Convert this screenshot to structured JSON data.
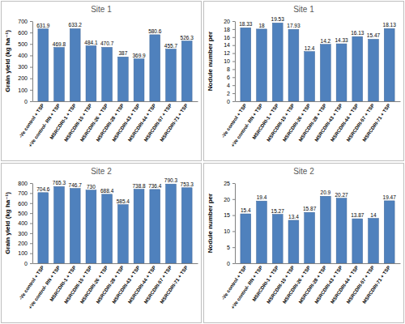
{
  "chart_data": [
    {
      "type": "bar",
      "title": "Site 1",
      "y_label": "Grain yield (kg ha⁻¹)",
      "categories": [
        "-Ve control + TSP",
        "+Ve control- RN + TSP",
        "MSRCDRI-1 + TSP",
        "MSRCDRI-15 + TSP",
        "MSRCDRI-26 + TSP",
        "MSRCDRI-28 + TSP",
        "MSRCDRI-43 + TSP",
        "MSRCDRI-44 + TSP",
        "MSRCDRI-57 + TSP",
        "MSRCDRI-71 + TSP"
      ],
      "values": [
        631.9,
        469.8,
        633.2,
        484.1,
        470.7,
        387,
        369.9,
        580.6,
        455.7,
        526.3
      ],
      "color": "#4f81bd",
      "ylim": [
        0,
        700
      ],
      "yticks": [
        0,
        100,
        200,
        300,
        400,
        500,
        600,
        700
      ],
      "data_labels": true,
      "grid": false
    },
    {
      "type": "bar",
      "title": "Site 1",
      "y_label": "Nodule number per",
      "categories": [
        "-Ve control + TSP",
        "+Ve control- RN + TSP",
        "MSRCDRI-1 + TSP",
        "MSRCDRI-15 + TSP",
        "MSRCDRI-26 + TSP",
        "MSRCDRI-28 + TSP",
        "MSRCDRI-43 + TSP",
        "MSRCDRI-44 + TSP",
        "MSRCDRI-57 + TSP",
        "MSRCDRI-71 + TSP"
      ],
      "values": [
        18.33,
        18,
        19.53,
        17.93,
        12.4,
        14.2,
        14.33,
        16.13,
        15.47,
        18.13
      ],
      "color": "#4f81bd",
      "ylim": [
        0,
        20
      ],
      "yticks": [
        0,
        2,
        4,
        6,
        8,
        10,
        12,
        14,
        16,
        18,
        20
      ],
      "data_labels": true,
      "grid": false
    },
    {
      "type": "bar",
      "title": "Site 2",
      "y_label": "Grain yield (kg ha⁻¹)",
      "categories": [
        "-Ve control + TSP",
        "+Ve control- RN + TSP",
        "MSRCDRI-1 + TSP",
        "MSRCDRI-15 + TSP",
        "MSRCDRI-26 + TSP",
        "MSRCDRI-28 + TSP",
        "MSRCDRI-43 + TSP",
        "MSRCDRI-44 + TSP",
        "MSRCDRI-57 + TSP",
        "MSRCDRI-71 + TSP"
      ],
      "values": [
        704.6,
        765.3,
        746.7,
        730,
        688.4,
        585.4,
        738.8,
        736.4,
        790.3,
        753.3
      ],
      "color": "#4f81bd",
      "ylim": [
        0,
        800
      ],
      "yticks": [
        0,
        100,
        200,
        300,
        400,
        500,
        600,
        700,
        800
      ],
      "data_labels": true,
      "grid": false
    },
    {
      "type": "bar",
      "title": "Site 2",
      "y_label": "Nodule number per",
      "categories": [
        "-Ve control + TSP",
        "+Ve control- RN + TSP",
        "MSRCDRI-1 + TSP",
        "MSRCDRI-15 + TSP",
        "MSRCDRI-26 + TSP",
        "MSRCDRI-28 + TSP",
        "MSRCDRI-43 + TSP",
        "MSRCDRI-44 + TSP",
        "MSRCDRI-57 + TSP",
        "MSRCDRI-71 + TSP"
      ],
      "values": [
        15.4,
        19.4,
        15.27,
        13.4,
        15.87,
        20.9,
        20.27,
        13.87,
        14,
        19.47
      ],
      "color": "#4f81bd",
      "ylim": [
        0,
        25
      ],
      "yticks": [
        0,
        5,
        10,
        15,
        20,
        25
      ],
      "data_labels": true,
      "grid": false
    }
  ]
}
